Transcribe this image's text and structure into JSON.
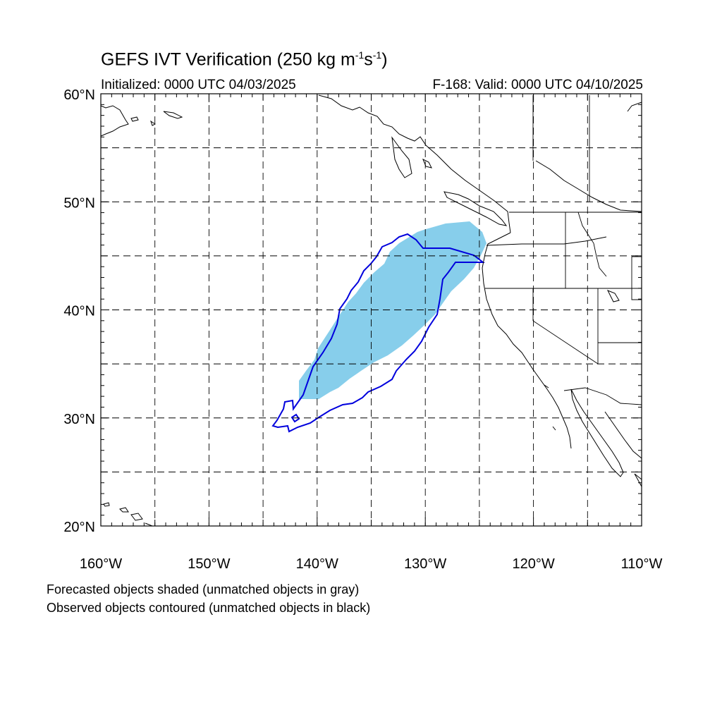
{
  "title": {
    "prefix": "GEFS IVT Verification (250 kg m",
    "exp1": "-1",
    "mid": "s",
    "exp2": "-1",
    "suffix": ")"
  },
  "subtitle": {
    "left": "Initialized: 0000 UTC 04/03/2025",
    "right": "F-168: Valid: 0000 UTC 04/10/2025"
  },
  "captions": [
    "Forecasted objects shaded (unmatched objects in gray)",
    "Observed objects contoured (unmatched objects in black)"
  ],
  "map": {
    "projection": "cylindrical equidistant",
    "lon_range": [
      -160,
      -110
    ],
    "lat_range": [
      20,
      60
    ],
    "lat_labels": [
      "60°N",
      "50°N",
      "40°N",
      "30°N",
      "20°N"
    ],
    "lon_labels": [
      "160°W",
      "150°W",
      "140°W",
      "130°W",
      "120°W",
      "110°W"
    ],
    "grid": "dashed, every 5 degrees",
    "colors": {
      "forecast_fill": "#87ceeb",
      "observed_contour": "#0000dd",
      "coastline": "#000000"
    }
  }
}
